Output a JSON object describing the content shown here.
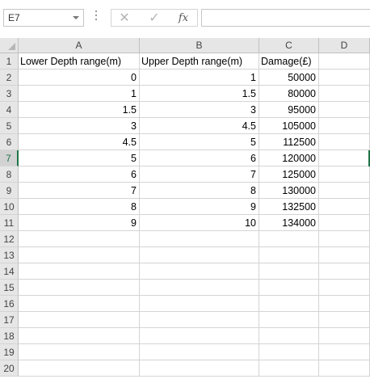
{
  "formula_bar": {
    "name_box": "E7",
    "cancel_glyph": "✕",
    "enter_glyph": "✓",
    "fx_label": "fx",
    "formula": ""
  },
  "columns": [
    "A",
    "B",
    "C",
    "D"
  ],
  "rows": [
    {
      "num": "1",
      "cells": [
        "Lower Depth range(m)",
        "Upper Depth range(m)",
        "Damage(£)",
        ""
      ]
    },
    {
      "num": "2",
      "cells": [
        "0",
        "1",
        "50000",
        ""
      ]
    },
    {
      "num": "3",
      "cells": [
        "1",
        "1.5",
        "80000",
        ""
      ]
    },
    {
      "num": "4",
      "cells": [
        "1.5",
        "3",
        "95000",
        ""
      ]
    },
    {
      "num": "5",
      "cells": [
        "3",
        "4.5",
        "105000",
        ""
      ]
    },
    {
      "num": "6",
      "cells": [
        "4.5",
        "5",
        "112500",
        ""
      ]
    },
    {
      "num": "7",
      "cells": [
        "5",
        "6",
        "120000",
        ""
      ]
    },
    {
      "num": "8",
      "cells": [
        "6",
        "7",
        "125000",
        ""
      ]
    },
    {
      "num": "9",
      "cells": [
        "7",
        "8",
        "130000",
        ""
      ]
    },
    {
      "num": "10",
      "cells": [
        "8",
        "9",
        "132500",
        ""
      ]
    },
    {
      "num": "11",
      "cells": [
        "9",
        "10",
        "134000",
        ""
      ]
    },
    {
      "num": "12",
      "cells": [
        "",
        "",
        "",
        ""
      ]
    },
    {
      "num": "13",
      "cells": [
        "",
        "",
        "",
        ""
      ]
    },
    {
      "num": "14",
      "cells": [
        "",
        "",
        "",
        ""
      ]
    },
    {
      "num": "15",
      "cells": [
        "",
        "",
        "",
        ""
      ]
    },
    {
      "num": "16",
      "cells": [
        "",
        "",
        "",
        ""
      ]
    },
    {
      "num": "17",
      "cells": [
        "",
        "",
        "",
        ""
      ]
    },
    {
      "num": "18",
      "cells": [
        "",
        "",
        "",
        ""
      ]
    },
    {
      "num": "19",
      "cells": [
        "",
        "",
        "",
        ""
      ]
    },
    {
      "num": "20",
      "cells": [
        "",
        "",
        "",
        ""
      ]
    }
  ],
  "active_row": "7",
  "accent_color": "#217346"
}
